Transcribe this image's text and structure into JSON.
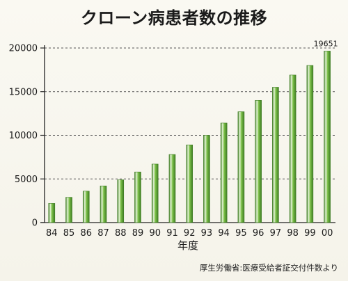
{
  "chart_data": {
    "type": "bar",
    "title": "クローン病患者数の推移",
    "xlabel": "年度",
    "ylabel": "",
    "categories": [
      "84",
      "85",
      "86",
      "87",
      "88",
      "89",
      "90",
      "91",
      "92",
      "93",
      "94",
      "95",
      "96",
      "97",
      "98",
      "99",
      "00"
    ],
    "values": [
      2200,
      2900,
      3600,
      4200,
      4900,
      5800,
      6700,
      7800,
      8900,
      10000,
      11400,
      12700,
      14000,
      15500,
      16900,
      18000,
      19651
    ],
    "ylim": [
      0,
      20000
    ],
    "yticks": [
      "0",
      "5000",
      "10000",
      "15000",
      "20000"
    ],
    "grid": "horizontal dashed",
    "annotations": [
      {
        "category": "00",
        "text": "19651"
      }
    ],
    "bar_color": "#7bbf47",
    "bar_highlight": "#e6f5d8",
    "bar_edge": "#3f7d24"
  },
  "source": "厚生労働省:医療受給者証交付件数より"
}
